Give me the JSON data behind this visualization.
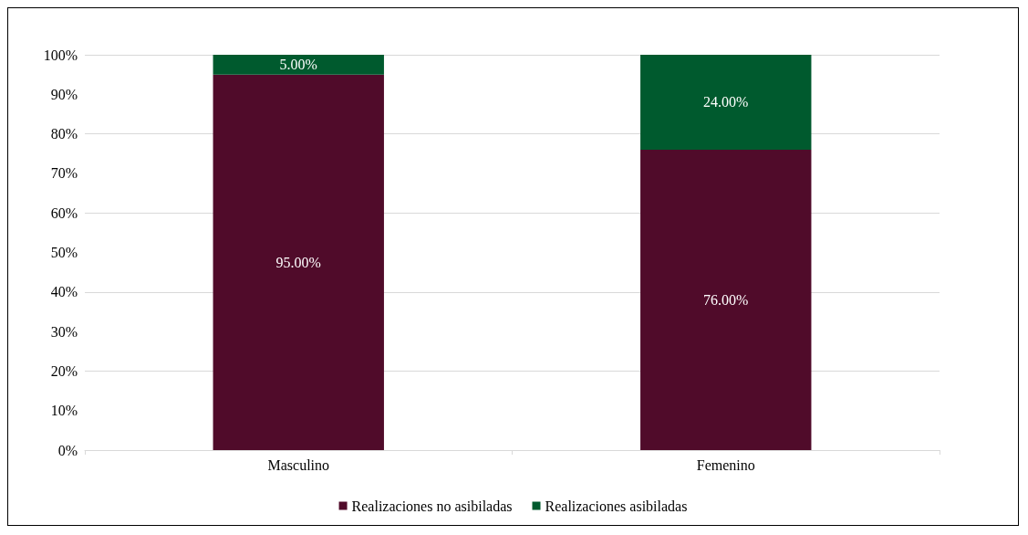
{
  "chart_data": {
    "type": "bar",
    "stacked": true,
    "categories": [
      "Masculino",
      "Femenino"
    ],
    "series": [
      {
        "name": "Realizaciones no asibiladas",
        "color": "#500b2a",
        "values": [
          95,
          76
        ],
        "value_labels": [
          "95.00%",
          "76.00%"
        ]
      },
      {
        "name": "Realizaciones asibiladas",
        "color": "#005a2e",
        "values": [
          5,
          24
        ],
        "value_labels": [
          "5.00%",
          "24.00%"
        ]
      }
    ],
    "ylim": [
      0,
      100
    ],
    "yticks": [
      {
        "value": 0,
        "label": "0%"
      },
      {
        "value": 10,
        "label": "10%"
      },
      {
        "value": 20,
        "label": "20%"
      },
      {
        "value": 30,
        "label": "30%"
      },
      {
        "value": 40,
        "label": "40%"
      },
      {
        "value": 50,
        "label": "50%"
      },
      {
        "value": 60,
        "label": "60%"
      },
      {
        "value": 70,
        "label": "70%"
      },
      {
        "value": 80,
        "label": "80%"
      },
      {
        "value": 90,
        "label": "90%"
      },
      {
        "value": 100,
        "label": "100%"
      }
    ],
    "grid": "y",
    "legend": "bottom"
  }
}
